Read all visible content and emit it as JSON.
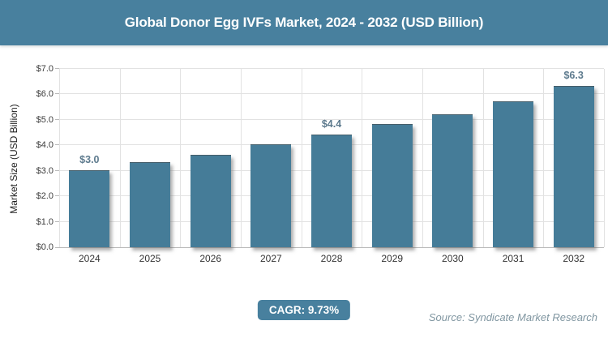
{
  "header": {
    "title": "Global Donor Egg IVFs Market, 2024 - 2032 (USD Billion)"
  },
  "chart_data": {
    "type": "bar",
    "title": "Global Donor Egg IVFs Market, 2024 - 2032 (USD Billion)",
    "categories": [
      "2024",
      "2025",
      "2026",
      "2027",
      "2028",
      "2029",
      "2030",
      "2031",
      "2032"
    ],
    "values": [
      3.0,
      3.3,
      3.6,
      4.0,
      4.4,
      4.8,
      5.2,
      5.7,
      6.3
    ],
    "data_labels": {
      "2024": "$3.0",
      "2028": "$4.4",
      "2032": "$6.3"
    },
    "xlabel": "",
    "ylabel": "Market Size (USD Billion)",
    "ylim": [
      0,
      7
    ],
    "yticks": [
      "$0.0",
      "$1.0",
      "$2.0",
      "$3.0",
      "$4.0",
      "$5.0",
      "$6.0",
      "$7.0"
    ],
    "grid": true,
    "legend_position": "none"
  },
  "footer": {
    "cagr_label": "CAGR: 9.73%",
    "source": "Source: Syndicate Market Research"
  },
  "colors": {
    "header_bg": "#48809E",
    "bar": "#457C98",
    "data_label": "#5E7B8E",
    "cagr_bg": "#48809E",
    "source_text": "#8096A1"
  }
}
